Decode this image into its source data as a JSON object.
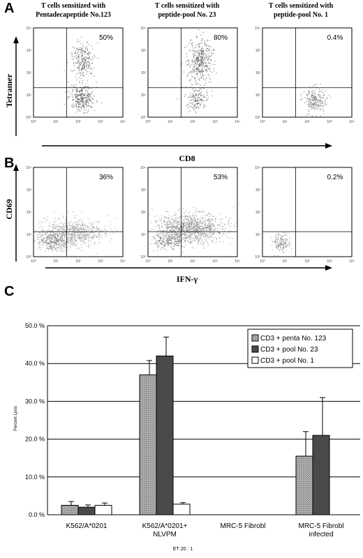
{
  "panel_a": {
    "letter": "A",
    "headers": [
      [
        "T cells sensitized with",
        "Pentadecapeptide No.123"
      ],
      [
        "T cells sensitized with",
        "peptide-pool No. 23"
      ],
      [
        "T cells sensitized with",
        "peptide-pool No. 1"
      ]
    ],
    "y_marker": "Tetramer",
    "x_marker": "CD8",
    "percents": [
      "50%",
      "80%",
      "0.4%"
    ],
    "tick_labels": [
      "10⁰",
      "10¹",
      "10²",
      "10³",
      "10⁴"
    ]
  },
  "panel_b": {
    "letter": "B",
    "y_marker": "CD69",
    "x_marker": "IFN-γ",
    "percents": [
      "36%",
      "53%",
      "0.2%"
    ],
    "tick_labels": [
      "10⁰",
      "10¹",
      "10²",
      "10³",
      "10⁴"
    ]
  },
  "panel_c": {
    "letter": "C"
  },
  "chart_data": {
    "type": "bar",
    "categories": [
      [
        "K562/A*0201"
      ],
      [
        "K562/A*0201+",
        "NLVPM"
      ],
      [
        "MRC-5 Fibrobl"
      ],
      [
        "MRC-5 Fibrobl",
        "infected"
      ]
    ],
    "series": [
      {
        "name": "CD3 + penta No. 123",
        "values": [
          2.5,
          37.0,
          null,
          15.5
        ],
        "errors": [
          1.0,
          3.8,
          null,
          6.5
        ],
        "color": "#a8a8a8",
        "pattern": true
      },
      {
        "name": "CD3 + pool No. 23",
        "values": [
          2.0,
          42.0,
          null,
          21.0
        ],
        "errors": [
          0.6,
          5.0,
          null,
          10.0
        ],
        "color": "#4a4a4a",
        "pattern": false
      },
      {
        "name": "CD3 + pool No. 1",
        "values": [
          2.5,
          2.8,
          null,
          null
        ],
        "errors": [
          0.6,
          0.4,
          null,
          null
        ],
        "color": "#ffffff",
        "pattern": false
      }
    ],
    "ylabel": "Percent Lysis",
    "xlabel": "ET 20 : 1",
    "ylim": [
      0,
      50
    ],
    "yticks": [
      0,
      10,
      20,
      30,
      40,
      50
    ],
    "ytick_labels": [
      "0.0 %",
      "10.0 %",
      "20.0 %",
      "30.0 %",
      "40.0 %",
      "50.0 %"
    ],
    "grid": true,
    "legend": "top-right"
  }
}
